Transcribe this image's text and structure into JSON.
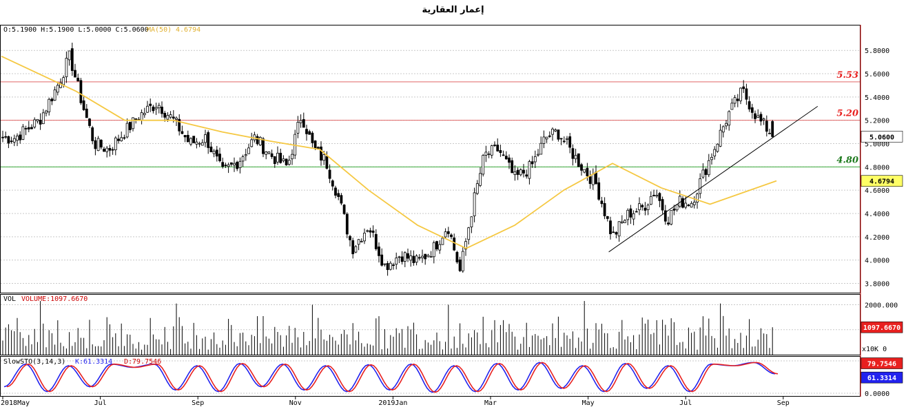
{
  "title": "إعمار العقارية",
  "info": {
    "ohlc": "O:5.1900  H:5.1900  L:5.0000  C:5.0600",
    "ma_label": "MA(50)",
    "ma_value": "4.6794",
    "vol_label": "VOL",
    "volume_label": "VOLUME:1097.6670",
    "sto_label": "SlowSTO(3,14,3)",
    "k_label": "K:61.3314",
    "d_label": "D:79.7546"
  },
  "colors": {
    "resistance_high": "#e06666",
    "resistance_mid": "#e06666",
    "support": "#38a838",
    "ma": "#f5c842",
    "k_line": "#2222ee",
    "d_line": "#e8201f",
    "price_flag": "#ffffff",
    "ma_flag": "#ffff66",
    "volume_flag": "#e8201f",
    "d_flag": "#e8201f",
    "k_flag": "#2222ee",
    "axis_right": "#cc0000"
  },
  "chart_data": [
    {
      "type": "candlestick",
      "title": "إعمار العقارية",
      "x_labels": [
        "2018May",
        "Jul",
        "Sep",
        "Nov",
        "2019Jan",
        "Mar",
        "May",
        "Jul",
        "Sep"
      ],
      "y_ticks": [
        "3.8000",
        "4.0000",
        "4.2000",
        "4.4000",
        "4.6000",
        "4.8000",
        "5.0000",
        "5.2000",
        "5.4000",
        "5.6000",
        "5.8000"
      ],
      "ylim": [
        3.72,
        6.02
      ],
      "grid": true,
      "last_price": "5.0600",
      "ma_last": "4.6794",
      "levels": [
        {
          "label": "5.53",
          "value": 5.53,
          "color": "red"
        },
        {
          "label": "5.20",
          "value": 5.2,
          "color": "red"
        },
        {
          "label": "4.80",
          "value": 4.8,
          "color": "green"
        }
      ],
      "trendline": {
        "from": [
          "2019May",
          4.07
        ],
        "to": [
          "2019Sep",
          5.32
        ]
      },
      "close_path": [
        [
          "2018May",
          5.05
        ],
        [
          "2018May",
          5.2
        ],
        [
          "2018Jun",
          5.5
        ],
        [
          "2018Jun",
          5.75
        ],
        [
          "2018Jun",
          5.35
        ],
        [
          "2018Jun",
          5.0
        ],
        [
          "2018Jul",
          4.95
        ],
        [
          "2018Jul",
          5.1
        ],
        [
          "2018Jul",
          5.25
        ],
        [
          "2018Aug",
          5.35
        ],
        [
          "2018Aug",
          5.2
        ],
        [
          "2018Aug",
          5.0
        ],
        [
          "2018Sep",
          5.05
        ],
        [
          "2018Sep",
          4.75
        ],
        [
          "2018Sep",
          4.85
        ],
        [
          "2018Oct",
          5.05
        ],
        [
          "2018Oct",
          4.9
        ],
        [
          "2018Oct",
          4.8
        ],
        [
          "2018Nov",
          5.25
        ],
        [
          "2018Nov",
          4.95
        ],
        [
          "2018Nov",
          4.85
        ],
        [
          "2018Nov",
          4.55
        ],
        [
          "2018Dec",
          4.1
        ],
        [
          "2018Dec",
          4.3
        ],
        [
          "2018Dec",
          3.95
        ],
        [
          "2019Jan",
          4.05
        ],
        [
          "2019Jan",
          3.98
        ],
        [
          "2019Jan",
          4.1
        ],
        [
          "2019Feb",
          4.3
        ],
        [
          "2019Feb",
          3.9
        ],
        [
          "2019Feb",
          4.45
        ],
        [
          "2019Feb",
          4.9
        ],
        [
          "2019Mar",
          4.95
        ],
        [
          "2019Mar",
          4.7
        ],
        [
          "2019Mar",
          4.8
        ],
        [
          "2019Apr",
          5.05
        ],
        [
          "2019Apr",
          5.1
        ],
        [
          "2019Apr",
          4.95
        ],
        [
          "2019Apr",
          4.8
        ],
        [
          "2019May",
          4.65
        ],
        [
          "2019May",
          4.2
        ],
        [
          "2019May",
          4.4
        ],
        [
          "2019Jun",
          4.45
        ],
        [
          "2019Jun",
          4.6
        ],
        [
          "2019Jun",
          4.35
        ],
        [
          "2019Jun",
          4.5
        ],
        [
          "2019Jul",
          4.5
        ],
        [
          "2019Jul",
          4.75
        ],
        [
          "2019Jul",
          5.0
        ],
        [
          "2019Jul",
          5.25
        ],
        [
          "2019Aug",
          5.45
        ],
        [
          "2019Aug",
          5.2
        ],
        [
          "2019Aug",
          5.06
        ]
      ],
      "ma50_path": [
        [
          "2018May",
          5.75
        ],
        [
          "2018Jun",
          5.45
        ],
        [
          "2018Jul",
          5.2
        ],
        [
          "2018Aug",
          5.2
        ],
        [
          "2018Sep",
          5.1
        ],
        [
          "2018Oct",
          5.02
        ],
        [
          "2018Nov",
          4.95
        ],
        [
          "2018Dec",
          4.6
        ],
        [
          "2019Jan",
          4.3
        ],
        [
          "2019Feb",
          4.1
        ],
        [
          "2019Mar",
          4.3
        ],
        [
          "2019Apr",
          4.6
        ],
        [
          "2019May",
          4.83
        ],
        [
          "2019Jun",
          4.62
        ],
        [
          "2019Jul",
          4.48
        ],
        [
          "2019Aug",
          4.68
        ]
      ]
    },
    {
      "type": "bar",
      "title": "VOL",
      "series_name": "VOLUME",
      "y_ticks": [
        "x10K 0",
        "1000.000",
        "2000.000"
      ],
      "ylim": [
        0,
        2400
      ],
      "last_value": "1097.6670",
      "typical_range": [
        200,
        1800
      ],
      "notable_peaks": [
        2150,
        2050,
        2000,
        2000
      ]
    },
    {
      "type": "line",
      "title": "SlowSTO(3,14,3)",
      "y_ticks": [
        "0.0000",
        "100.000"
      ],
      "ylim": [
        0,
        100
      ],
      "series": [
        {
          "name": "K",
          "last": "61.3314"
        },
        {
          "name": "D",
          "last": "79.7546"
        }
      ],
      "swing_points": [
        20,
        90,
        5,
        85,
        20,
        90,
        80,
        90,
        10,
        85,
        5,
        92,
        20,
        90,
        10,
        85,
        5,
        88,
        10,
        90,
        3,
        85,
        5,
        92,
        10,
        95,
        15,
        85,
        5,
        92,
        15,
        85,
        5,
        90,
        85,
        95,
        60
      ]
    }
  ]
}
